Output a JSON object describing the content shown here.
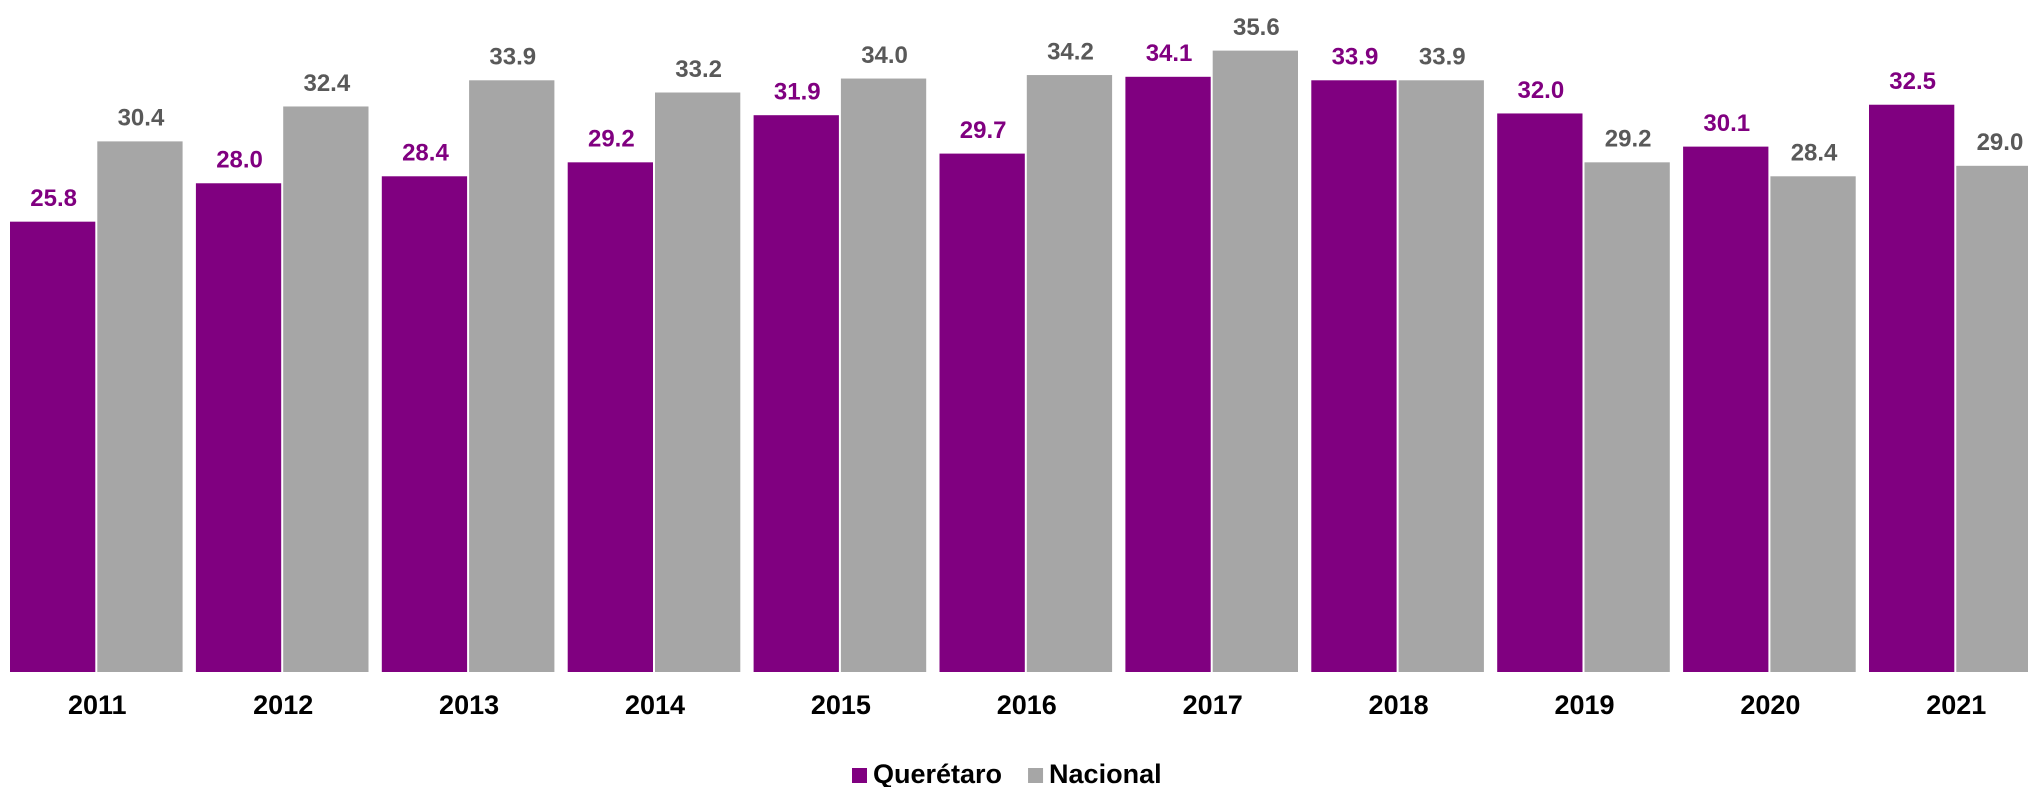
{
  "chart_data": {
    "type": "bar",
    "categories": [
      "2011",
      "2012",
      "2013",
      "2014",
      "2015",
      "2016",
      "2017",
      "2018",
      "2019",
      "2020",
      "2021"
    ],
    "series": [
      {
        "name": "Querétaro",
        "color": "#800080",
        "label_color": "#800080",
        "values": [
          25.8,
          28.0,
          28.4,
          29.2,
          31.9,
          29.7,
          34.1,
          33.9,
          32.0,
          30.1,
          32.5
        ],
        "value_labels": [
          "25.8",
          "28.0",
          "28.4",
          "29.2",
          "31.9",
          "29.7",
          "34.1",
          "33.9",
          "32.0",
          "30.1",
          "32.5"
        ]
      },
      {
        "name": "Nacional",
        "color": "#a6a6a6",
        "label_color": "#595959",
        "values": [
          30.4,
          32.4,
          33.9,
          33.2,
          34.0,
          34.2,
          35.6,
          33.9,
          29.2,
          28.4,
          29.0
        ],
        "value_labels": [
          "30.4",
          "32.4",
          "33.9",
          "33.2",
          "34.0",
          "34.2",
          "35.6",
          "33.9",
          "29.2",
          "28.4",
          "29.0"
        ]
      }
    ],
    "ylim": [
      0,
      38.5
    ],
    "legend": "bottom"
  }
}
